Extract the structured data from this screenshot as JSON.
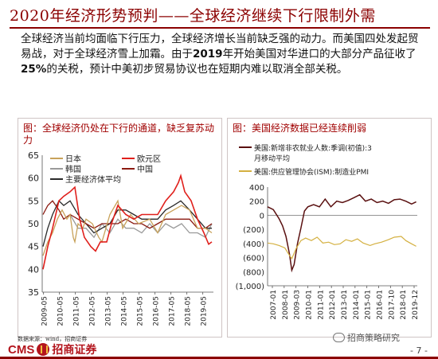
{
  "page": {
    "title": "2020年经济形势预判——全球经济继续下行限制外需",
    "body_parts": [
      {
        "text": "全球经济当前均面临下行压力，全球经济增长当前缺乏强的动力。而美国四处发起贸易战，对于全球经济雪上加霜。由于",
        "bold": false
      },
      {
        "text": "2019",
        "bold": true
      },
      {
        "text": "年开始美国对华进口的大部分产品征收了",
        "bold": false
      },
      {
        "text": "25%",
        "bold": true
      },
      {
        "text": "的关税，预计中美初步贸易协议也在短期内难以取消全部关税。",
        "bold": false
      }
    ],
    "source": "数据来源：wind，招商证券",
    "logo": {
      "latin": "CMS",
      "cn": "招商证券"
    },
    "watermark": "招商策略研究",
    "page_number": "- 7 -"
  },
  "colors": {
    "accent": "#8b0000",
    "japan": "#c8a25a",
    "eurozone": "#e0201c",
    "korea": "#9a9a9a",
    "china": "#8b1a10",
    "major_avg": "#2a2a2a",
    "us_nfp": "#5a1010",
    "us_ism": "#d4b040"
  },
  "chart_data": [
    {
      "type": "line",
      "title": "图：全球经济仍处在下行的通道，缺乏复苏动力",
      "ylim": [
        35,
        65
      ],
      "yticks": [
        "35",
        "40",
        "45",
        "50",
        "55",
        "60",
        "65"
      ],
      "xlim": [
        2009.25,
        2020.0
      ],
      "xticks": [
        "2009-05",
        "2010-05",
        "2011-05",
        "2012-05",
        "2013-05",
        "2014-05",
        "2015-05",
        "2016-05",
        "2017-05",
        "2018-05",
        "2019-05"
      ],
      "legend": "top-left",
      "series": [
        {
          "name": "日本",
          "color_key": "japan",
          "x": [
            2009.3,
            2009.6,
            2009.9,
            2010.2,
            2010.5,
            2010.8,
            2011.0,
            2011.2,
            2011.3,
            2011.5,
            2011.8,
            2012.0,
            2012.4,
            2012.8,
            2013.0,
            2013.5,
            2014.0,
            2014.3,
            2014.8,
            2015.3,
            2016.0,
            2016.5,
            2017.0,
            2017.5,
            2018.0,
            2018.5,
            2019.0,
            2019.5,
            2019.9
          ],
          "y": [
            43,
            46,
            48,
            51,
            53,
            51,
            52,
            47,
            46,
            50,
            49,
            51,
            50,
            47,
            46,
            52,
            55,
            49,
            52,
            50,
            51,
            48,
            52,
            53,
            54,
            53,
            49,
            49,
            48
          ]
        },
        {
          "name": "欧元区",
          "color_key": "eurozone",
          "x": [
            2009.3,
            2009.6,
            2009.9,
            2010.3,
            2010.6,
            2011.0,
            2011.3,
            2011.6,
            2011.9,
            2012.3,
            2012.6,
            2012.9,
            2013.3,
            2013.6,
            2014.0,
            2014.5,
            2015.0,
            2015.5,
            2016.0,
            2016.5,
            2017.0,
            2017.5,
            2017.8,
            2017.95,
            2018.2,
            2018.6,
            2019.0,
            2019.4,
            2019.7,
            2019.9
          ],
          "y": [
            40,
            45,
            49,
            55,
            56,
            57,
            58,
            51,
            47,
            45,
            44,
            46,
            46,
            50,
            54,
            52,
            51,
            52,
            52,
            52,
            55,
            57,
            59,
            60.5,
            57,
            55,
            51,
            48,
            45.5,
            46
          ]
        },
        {
          "name": "韩国",
          "color_key": "korea",
          "x": [
            2011.0,
            2011.5,
            2012.0,
            2012.5,
            2013.0,
            2013.5,
            2014.0,
            2014.5,
            2015.0,
            2015.5,
            2016.0,
            2016.5,
            2017.0,
            2017.5,
            2018.0,
            2018.5,
            2019.0,
            2019.5,
            2019.9
          ],
          "y": [
            52,
            49,
            49,
            47,
            50,
            48,
            51,
            49,
            49,
            48,
            50,
            48,
            50,
            49,
            50,
            48,
            48,
            47,
            50
          ]
        },
        {
          "name": "中国",
          "color_key": "china",
          "x": [
            2009.3,
            2009.6,
            2009.9,
            2010.3,
            2010.6,
            2011.0,
            2011.5,
            2012.0,
            2012.5,
            2013.0,
            2013.5,
            2014.0,
            2014.5,
            2015.0,
            2015.5,
            2016.0,
            2016.5,
            2017.0,
            2017.5,
            2018.0,
            2018.5,
            2019.0,
            2019.5,
            2019.9
          ],
          "y": [
            52,
            54,
            55,
            53,
            51,
            52,
            51,
            50,
            49,
            50,
            50,
            50,
            51,
            50,
            50,
            49,
            50,
            51,
            51,
            51,
            51,
            49,
            49,
            50
          ]
        },
        {
          "name": "主要经济体平均",
          "color_key": "major_avg",
          "x": [
            2009.3,
            2009.6,
            2009.9,
            2010.3,
            2010.6,
            2011.0,
            2011.5,
            2012.0,
            2012.5,
            2013.0,
            2013.5,
            2014.0,
            2014.5,
            2015.0,
            2015.5,
            2016.0,
            2016.5,
            2017.0,
            2017.5,
            2017.95,
            2018.5,
            2019.0,
            2019.5,
            2019.9
          ],
          "y": [
            45,
            49,
            52,
            55,
            54,
            55,
            52,
            50,
            48,
            49,
            50,
            53,
            53,
            52,
            51,
            51,
            51,
            53,
            54,
            55,
            53,
            51,
            49,
            49
          ]
        }
      ]
    },
    {
      "type": "line",
      "title": "图：美国经济数据已经连续削弱",
      "ylim": [
        -1000,
        400
      ],
      "yticks": [
        "(1,000)",
        "(800)",
        "(600)",
        "(400)",
        "(200)",
        "0",
        "200",
        "400"
      ],
      "y2lim": [
        0,
        120
      ],
      "xlim": [
        2007.0,
        2020.0
      ],
      "xticks": [
        "2007-01",
        "2008-01",
        "2009-03",
        "2010-01",
        "2011-01",
        "2012-01",
        "2013-01",
        "2014-01",
        "2015-01",
        "2016-01",
        "2017-10",
        "2018-01",
        "2019-12"
      ],
      "legend": "top",
      "series": [
        {
          "name": "美国:新增非农就业人数:季调(初值):3月移动平均",
          "color_key": "us_nfp",
          "axis": "left",
          "x": [
            2007.0,
            2007.5,
            2008.0,
            2008.3,
            2008.6,
            2008.9,
            2009.1,
            2009.3,
            2009.6,
            2009.9,
            2010.2,
            2010.5,
            2011.0,
            2011.5,
            2012.0,
            2012.5,
            2013.0,
            2013.5,
            2014.0,
            2014.5,
            2015.0,
            2015.5,
            2016.0,
            2016.5,
            2017.0,
            2017.5,
            2018.0,
            2018.5,
            2019.0,
            2019.5,
            2019.9
          ],
          "y": [
            120,
            80,
            -50,
            -150,
            -300,
            -550,
            -780,
            -700,
            -400,
            -180,
            60,
            120,
            150,
            120,
            230,
            120,
            200,
            180,
            210,
            250,
            290,
            200,
            230,
            180,
            200,
            170,
            220,
            230,
            200,
            160,
            190
          ]
        },
        {
          "name": "美国:供应管理协会(ISM):制造业PMI",
          "color_key": "us_ism",
          "axis": "right",
          "x": [
            2007.0,
            2007.5,
            2008.0,
            2008.5,
            2008.9,
            2009.1,
            2009.5,
            2009.9,
            2010.3,
            2010.8,
            2011.3,
            2011.8,
            2012.3,
            2012.8,
            2013.3,
            2013.8,
            2014.3,
            2014.8,
            2015.3,
            2015.9,
            2016.3,
            2016.9,
            2017.5,
            2018.0,
            2018.6,
            2019.0,
            2019.5,
            2019.9
          ],
          "y": [
            52,
            51,
            49,
            46,
            37,
            33,
            46,
            55,
            58,
            55,
            59,
            52,
            53,
            50,
            51,
            56,
            54,
            57,
            52,
            49,
            51,
            53,
            56,
            59,
            60,
            55,
            51,
            48
          ]
        }
      ]
    }
  ]
}
